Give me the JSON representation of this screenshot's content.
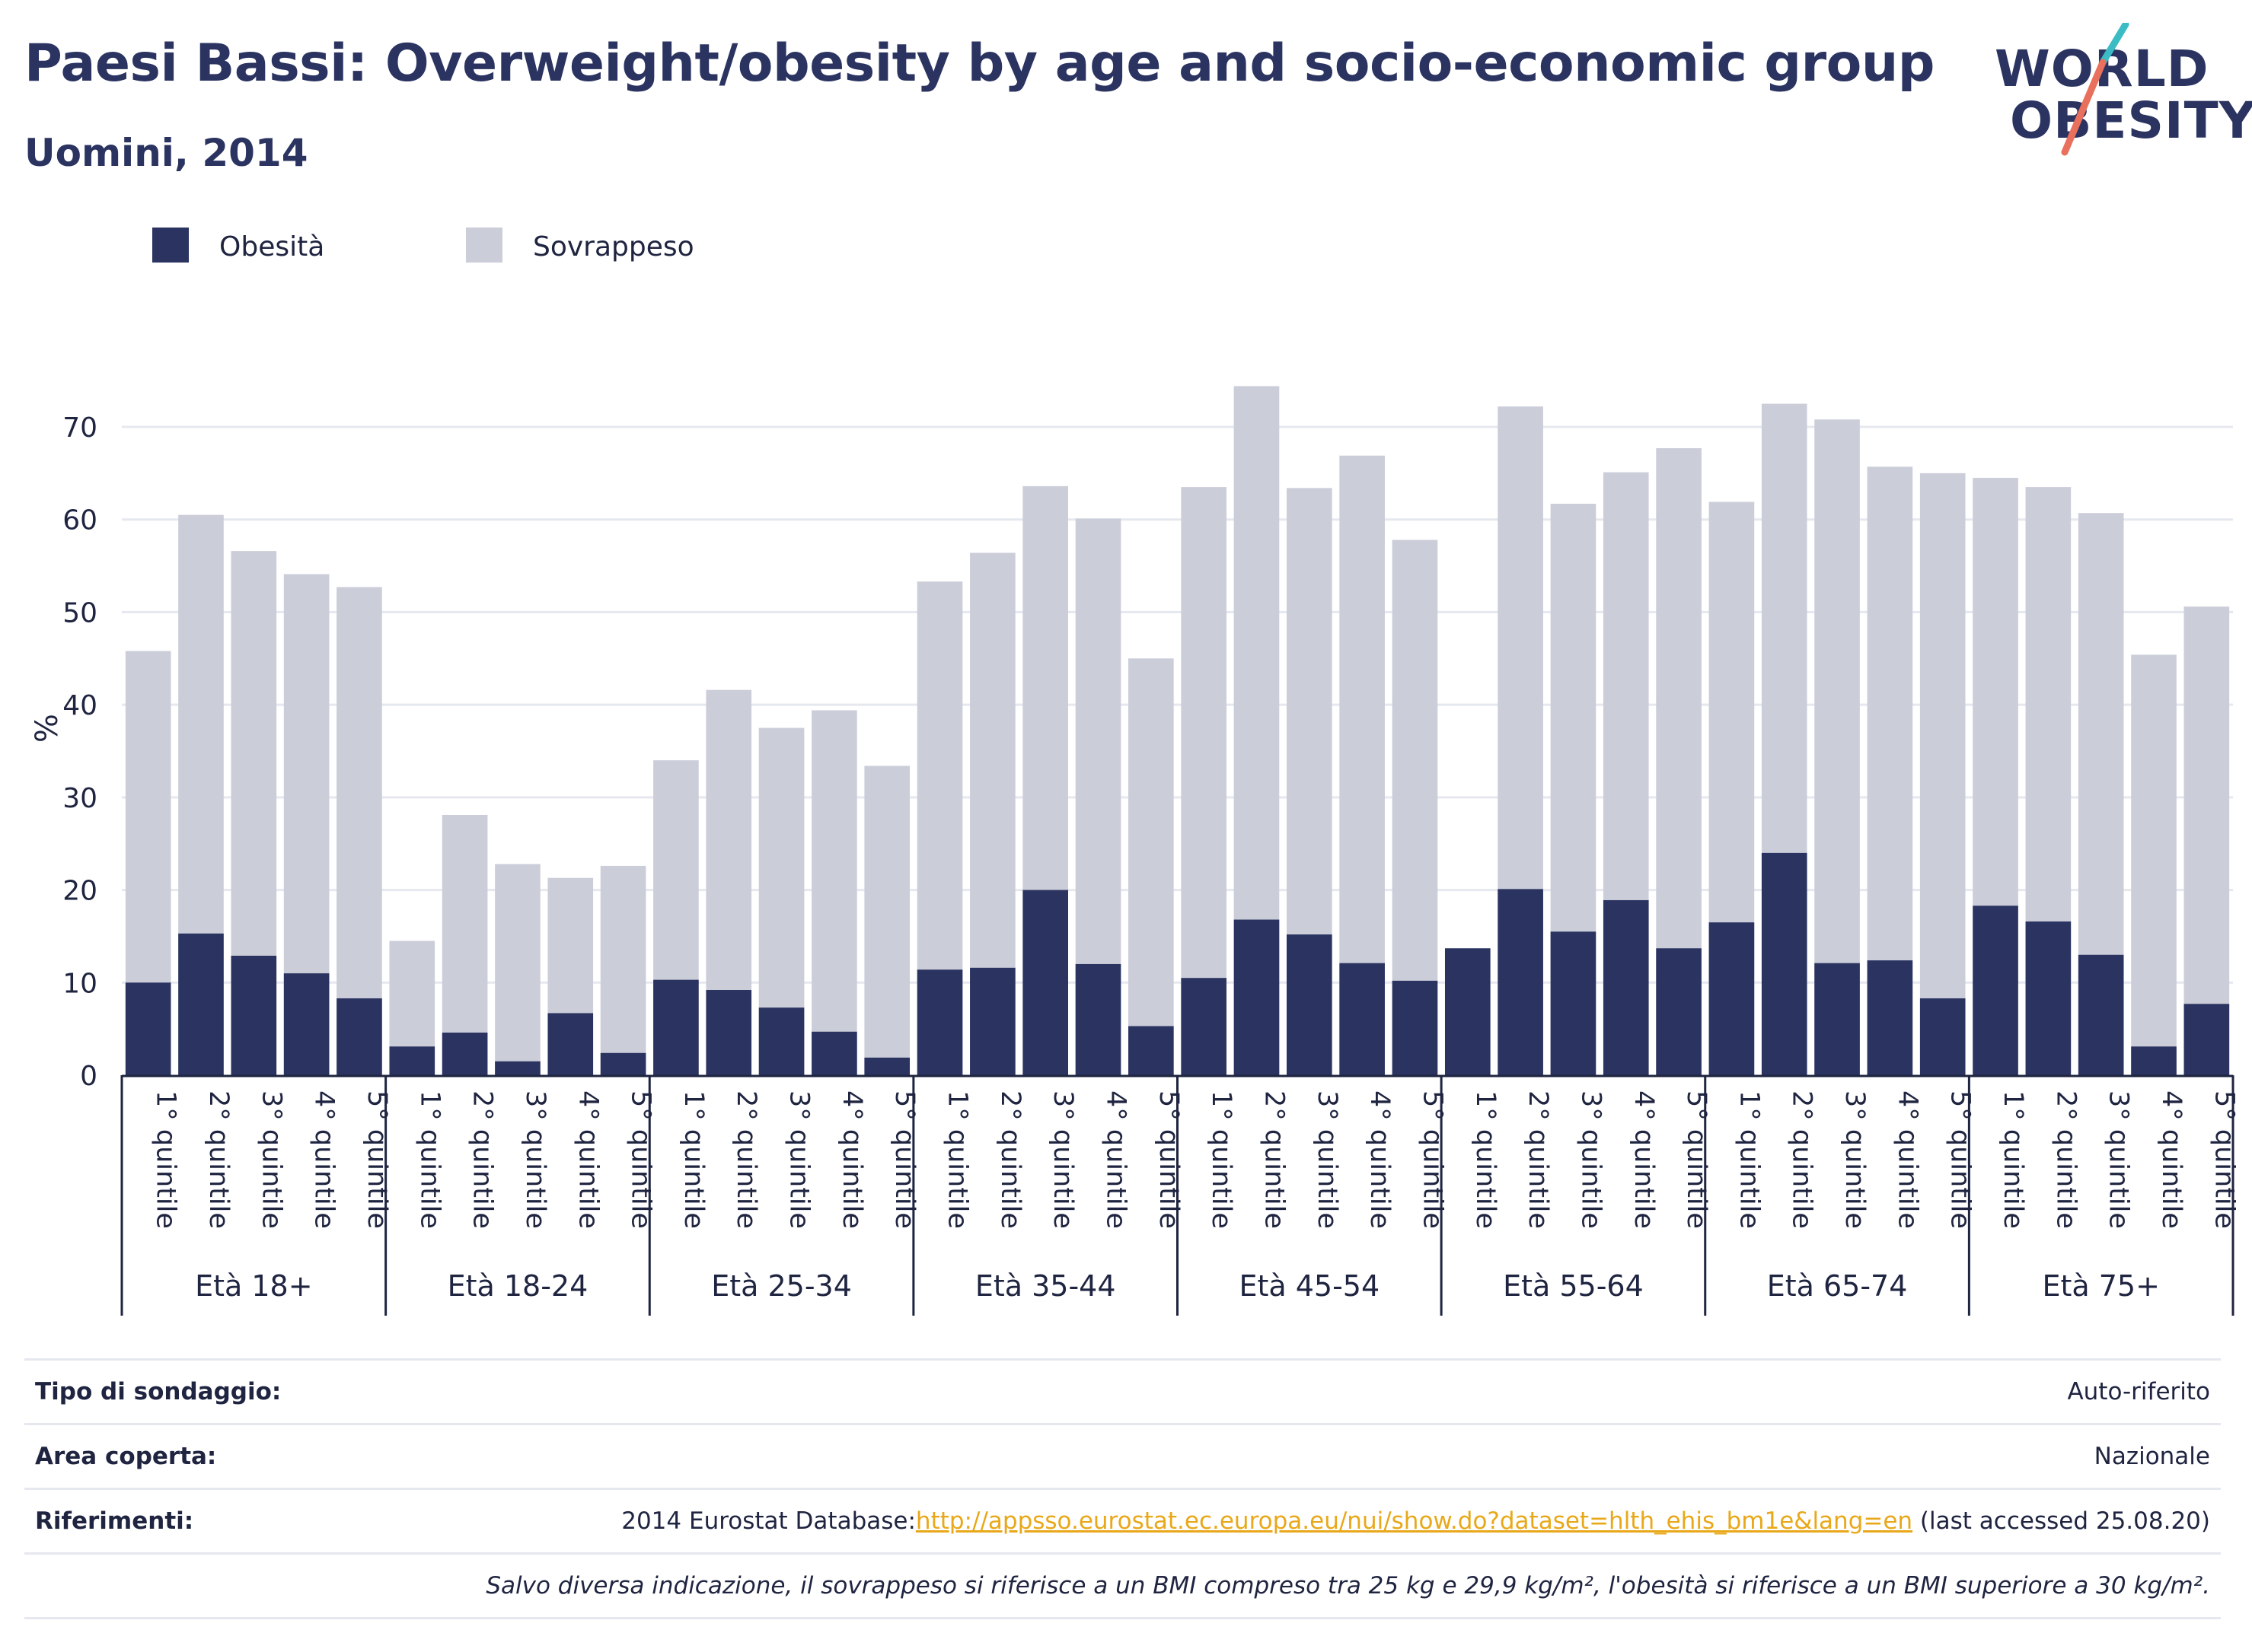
{
  "header": {
    "title": "Paesi Bassi: Overweight/obesity by age and socio-economic group",
    "subtitle": "Uomini, 2014"
  },
  "logo": {
    "line1": "WORLD",
    "line2": "OBESITY",
    "slash_top_color": "#3bbcc4",
    "slash_bottom_color": "#e8705c"
  },
  "colors": {
    "obesity": "#2b3461",
    "overweight": "#cbcdd9",
    "grid": "#e6e8ef",
    "link": "#e8a81a"
  },
  "chart_data": {
    "type": "bar",
    "stacked": "overlay",
    "ylabel": "%",
    "ylim": [
      0,
      75
    ],
    "yticks": [
      0,
      10,
      20,
      30,
      40,
      50,
      60,
      70
    ],
    "grid": true,
    "legend_position": "top-left",
    "legend": [
      "Obesità",
      "Sovrappeso"
    ],
    "quintile_labels": [
      "1° quintile",
      "2° quintile",
      "3° quintile",
      "4° quintile",
      "5° quintile"
    ],
    "groups": [
      "Età 18+",
      "Età 18-24",
      "Età 25-34",
      "Età 35-44",
      "Età 45-54",
      "Età 55-64",
      "Età 65-74",
      "Età 75+"
    ],
    "series": [
      {
        "name": "Obesità",
        "values": [
          10.0,
          15.3,
          12.9,
          11.0,
          8.3,
          3.1,
          4.6,
          1.5,
          6.7,
          2.4,
          10.3,
          9.2,
          7.3,
          4.7,
          1.9,
          11.4,
          11.6,
          20.0,
          12.0,
          5.3,
          10.5,
          16.8,
          15.2,
          12.1,
          10.2,
          13.7,
          20.1,
          15.5,
          18.9,
          13.7,
          16.5,
          24.0,
          12.1,
          12.4,
          8.3,
          18.3,
          16.6,
          13.0,
          3.1,
          7.7
        ]
      },
      {
        "name": "Sovrappeso",
        "values": [
          45.8,
          60.5,
          56.6,
          54.1,
          52.7,
          14.5,
          28.1,
          22.8,
          21.3,
          22.6,
          34.0,
          41.6,
          37.5,
          39.4,
          33.4,
          53.3,
          56.4,
          63.6,
          60.1,
          45.0,
          63.5,
          74.4,
          63.4,
          66.9,
          57.8,
          13.7,
          72.2,
          61.7,
          65.1,
          67.7,
          61.9,
          72.5,
          70.8,
          65.7,
          65.0,
          64.5,
          63.5,
          60.7,
          45.4,
          50.6
        ]
      }
    ]
  },
  "info": {
    "survey_label": "Tipo di sondaggio:",
    "survey_value": "Auto-riferito",
    "area_label": "Area coperta:",
    "area_value": "Nazionale",
    "refs_label": "Riferimenti:",
    "refs_prefix": "2014 Eurostat Database:",
    "refs_link": "http://appsso.eurostat.ec.europa.eu/nui/show.do?dataset=hlth_ehis_bm1e&lang=en",
    "refs_suffix": " (last accessed 25.08.20)",
    "note": "Salvo diversa indicazione, il sovrappeso si riferisce a un BMI compreso tra 25 kg e 29,9 kg/m², l'obesità si riferisce a un BMI superiore a 30 kg/m²."
  }
}
